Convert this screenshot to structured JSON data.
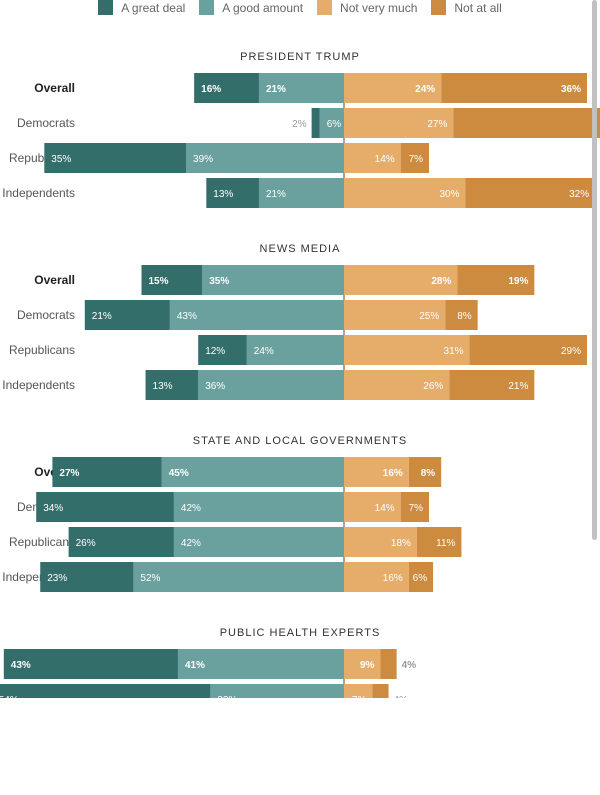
{
  "legend": [
    {
      "label": "A great deal",
      "color": "#336e6b"
    },
    {
      "label": "A good amount",
      "color": "#6aa19f"
    },
    {
      "label": "Not very much",
      "color": "#e6ac6a"
    },
    {
      "label": "Not at all",
      "color": "#cc8b3f"
    }
  ],
  "chart_data": {
    "type": "bar",
    "orientation": "diverging-stacked-horizontal",
    "series_order": [
      "A great deal",
      "A good amount",
      "Not very much",
      "Not at all"
    ],
    "panels": [
      {
        "title": "PRESIDENT TRUMP",
        "rows": [
          {
            "label": "Overall",
            "bold": true,
            "values": [
              16,
              21,
              24,
              36
            ]
          },
          {
            "label": "Democrats",
            "bold": false,
            "values": [
              2,
              6,
              27,
              64
            ]
          },
          {
            "label": "Republicans",
            "bold": false,
            "values": [
              35,
              39,
              14,
              7
            ]
          },
          {
            "label": "Independents",
            "bold": false,
            "values": [
              13,
              21,
              30,
              32
            ]
          }
        ]
      },
      {
        "title": "NEWS MEDIA",
        "rows": [
          {
            "label": "Overall",
            "bold": true,
            "values": [
              15,
              35,
              28,
              19
            ]
          },
          {
            "label": "Democrats",
            "bold": false,
            "values": [
              21,
              43,
              25,
              8
            ]
          },
          {
            "label": "Republicans",
            "bold": false,
            "values": [
              12,
              24,
              31,
              29
            ]
          },
          {
            "label": "Independents",
            "bold": false,
            "values": [
              13,
              36,
              26,
              21
            ]
          }
        ]
      },
      {
        "title": "STATE AND LOCAL GOVERNMENTS",
        "rows": [
          {
            "label": "Overall",
            "bold": true,
            "values": [
              27,
              45,
              16,
              8
            ]
          },
          {
            "label": "Democrats",
            "bold": false,
            "values": [
              34,
              42,
              14,
              7
            ]
          },
          {
            "label": "Republicans",
            "bold": false,
            "values": [
              26,
              42,
              18,
              11
            ]
          },
          {
            "label": "Independents",
            "bold": false,
            "values": [
              23,
              52,
              16,
              6
            ]
          }
        ]
      },
      {
        "title": "PUBLIC HEALTH EXPERTS",
        "rows": [
          {
            "label": "Overall",
            "bold": true,
            "values": [
              43,
              41,
              9,
              4
            ]
          },
          {
            "label": "Democrats",
            "bold": false,
            "values": [
              54,
              33,
              7,
              4
            ]
          }
        ]
      }
    ],
    "xlabel": "",
    "ylabel": ""
  }
}
